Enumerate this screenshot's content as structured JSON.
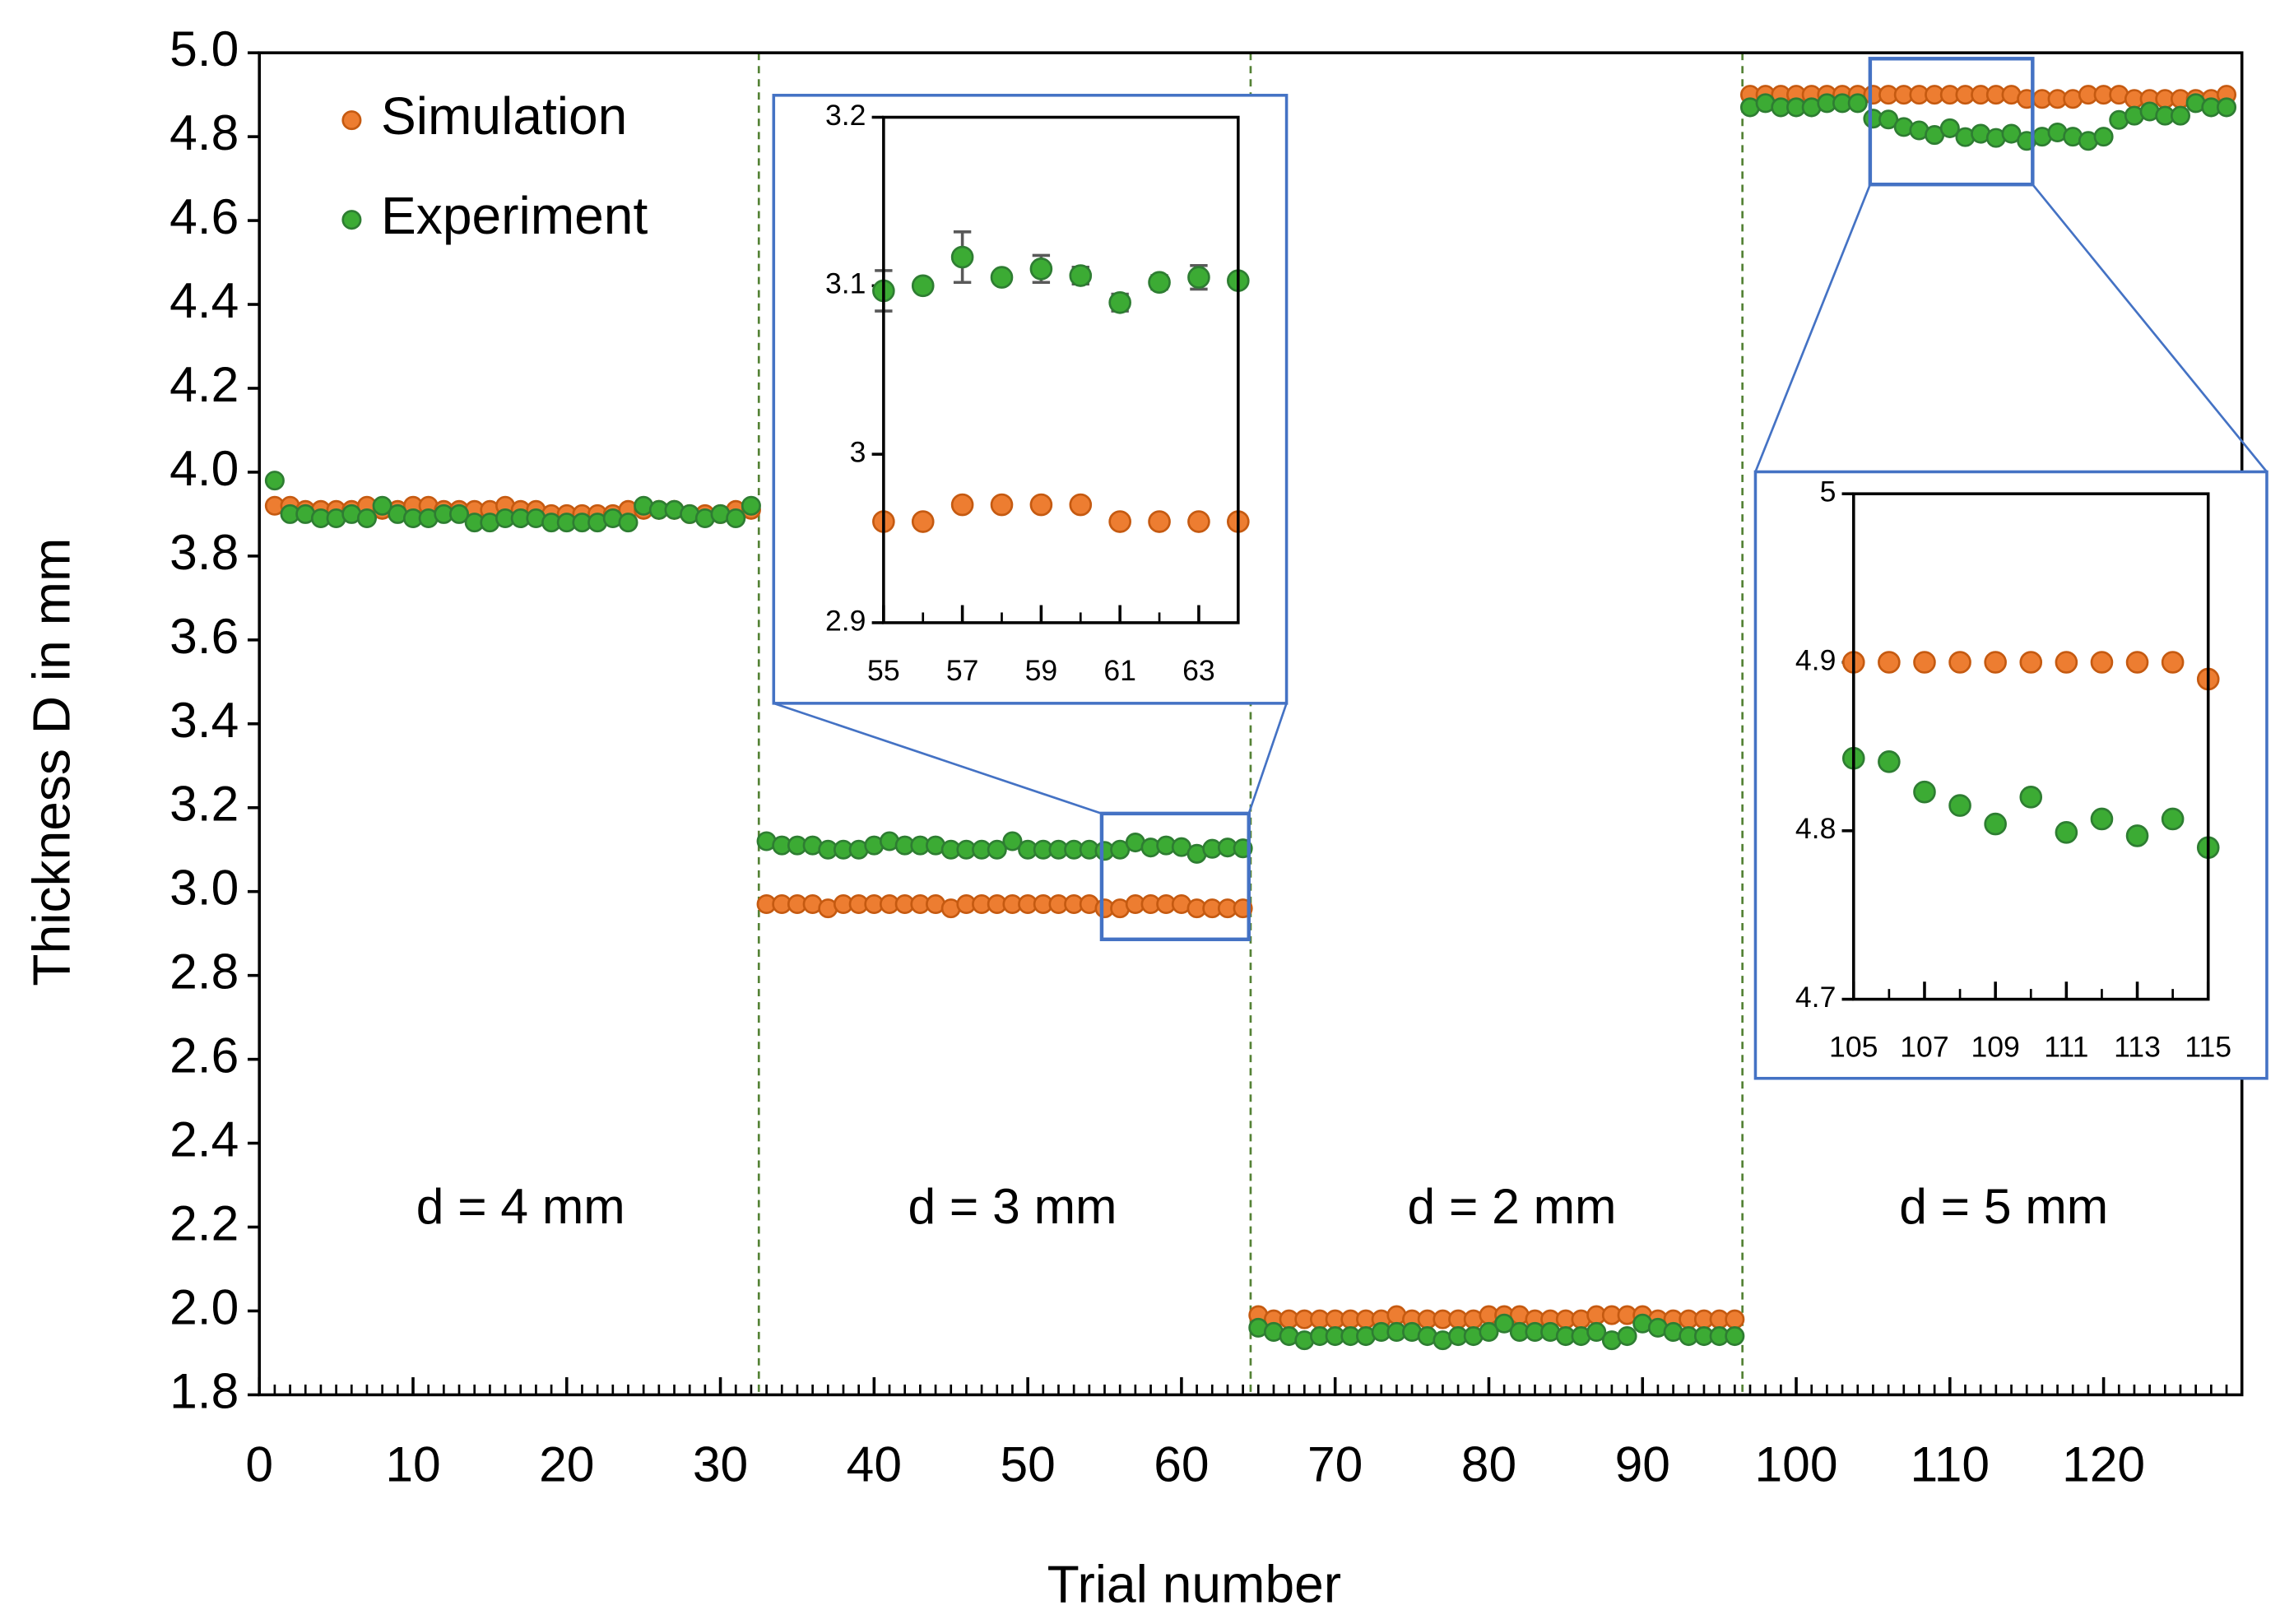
{
  "chart_data": [
    {
      "type": "scatter",
      "x_label": "Trial number",
      "y_label": "Thickness D in mm",
      "xlim": [
        0,
        129
      ],
      "xticks": [
        0,
        10,
        20,
        30,
        40,
        50,
        60,
        70,
        80,
        90,
        100,
        110,
        120
      ],
      "xminor": 1,
      "ylim": [
        1.8,
        5.0
      ],
      "yticks": [
        1.8,
        {
          "value": 2.0,
          "label": "2.0"
        },
        2.2,
        2.4,
        2.6,
        2.8,
        {
          "value": 3.0,
          "label": "3.0"
        },
        3.2,
        3.4,
        3.6,
        3.8,
        {
          "value": 4.0,
          "label": "4.0"
        },
        4.2,
        4.4,
        4.6,
        4.8,
        {
          "value": 5.0,
          "label": "5.0"
        }
      ],
      "legend": "top-left",
      "dividers": [
        32.5,
        64.5,
        96.5
      ],
      "annotations": [
        {
          "text": "d = 4 mm",
          "x": 17,
          "y": 2.24
        },
        {
          "text": "d = 3 mm",
          "x": 49,
          "y": 2.24
        },
        {
          "text": "d = 2 mm",
          "x": 81.5,
          "y": 2.24
        },
        {
          "text": "d = 5 mm",
          "x": 113.5,
          "y": 2.24
        }
      ],
      "x": [
        1,
        2,
        3,
        4,
        5,
        6,
        7,
        8,
        9,
        10,
        11,
        12,
        13,
        14,
        15,
        16,
        17,
        18,
        19,
        20,
        21,
        22,
        23,
        24,
        25,
        26,
        27,
        28,
        29,
        30,
        31,
        32,
        33,
        34,
        35,
        36,
        37,
        38,
        39,
        40,
        41,
        42,
        43,
        44,
        45,
        46,
        47,
        48,
        49,
        50,
        51,
        52,
        53,
        54,
        55,
        56,
        57,
        58,
        59,
        60,
        61,
        62,
        63,
        64,
        65,
        66,
        67,
        68,
        69,
        70,
        71,
        72,
        73,
        74,
        75,
        76,
        77,
        78,
        79,
        80,
        81,
        82,
        83,
        84,
        85,
        86,
        87,
        88,
        89,
        90,
        91,
        92,
        93,
        94,
        95,
        96,
        97,
        98,
        99,
        100,
        101,
        102,
        103,
        104,
        105,
        106,
        107,
        108,
        109,
        110,
        111,
        112,
        113,
        114,
        115,
        116,
        117,
        118,
        119,
        120,
        121,
        122,
        123,
        124,
        125,
        126,
        127,
        128
      ],
      "series": [
        {
          "name": "Simulation",
          "color": "#ed7d31",
          "stroke": "#c55a11",
          "values": [
            3.92,
            3.92,
            3.91,
            3.91,
            3.91,
            3.91,
            3.92,
            3.91,
            3.91,
            3.92,
            3.92,
            3.91,
            3.91,
            3.91,
            3.91,
            3.92,
            3.91,
            3.91,
            3.9,
            3.9,
            3.9,
            3.9,
            3.9,
            3.91,
            3.91,
            3.91,
            3.91,
            3.9,
            3.9,
            3.9,
            3.91,
            3.91,
            2.97,
            2.97,
            2.97,
            2.97,
            2.96,
            2.97,
            2.97,
            2.97,
            2.97,
            2.97,
            2.97,
            2.97,
            2.96,
            2.97,
            2.97,
            2.97,
            2.97,
            2.97,
            2.97,
            2.97,
            2.97,
            2.97,
            2.96,
            2.96,
            2.97,
            2.97,
            2.97,
            2.97,
            2.96,
            2.96,
            2.96,
            2.96,
            1.99,
            1.98,
            1.98,
            1.98,
            1.98,
            1.98,
            1.98,
            1.98,
            1.98,
            1.99,
            1.98,
            1.98,
            1.98,
            1.98,
            1.98,
            1.99,
            1.99,
            1.99,
            1.98,
            1.98,
            1.98,
            1.98,
            1.99,
            1.99,
            1.99,
            1.99,
            1.98,
            1.98,
            1.98,
            1.98,
            1.98,
            1.98,
            4.9,
            4.9,
            4.9,
            4.9,
            4.9,
            4.9,
            4.9,
            4.9,
            4.9,
            4.9,
            4.9,
            4.9,
            4.9,
            4.9,
            4.9,
            4.9,
            4.9,
            4.9,
            4.89,
            4.89,
            4.89,
            4.89,
            4.9,
            4.9,
            4.9,
            4.89,
            4.89,
            4.89,
            4.89,
            4.89,
            4.89,
            4.9
          ]
        },
        {
          "name": "Experiment",
          "color": "#3cab34",
          "stroke": "#2e7d32",
          "values": [
            3.98,
            3.9,
            3.9,
            3.89,
            3.89,
            3.9,
            3.89,
            3.92,
            3.9,
            3.89,
            3.89,
            3.9,
            3.9,
            3.88,
            3.88,
            3.89,
            3.89,
            3.89,
            3.88,
            3.88,
            3.88,
            3.88,
            3.89,
            3.88,
            3.92,
            3.91,
            3.91,
            3.9,
            3.89,
            3.9,
            3.89,
            3.92,
            3.12,
            3.11,
            3.11,
            3.11,
            3.1,
            3.1,
            3.1,
            3.11,
            3.12,
            3.11,
            3.11,
            3.11,
            3.1,
            3.1,
            3.1,
            3.1,
            3.12,
            3.1,
            3.1,
            3.1,
            3.1,
            3.1,
            3.097,
            3.1,
            3.117,
            3.105,
            3.11,
            3.106,
            3.09,
            3.102,
            3.105,
            3.103,
            1.96,
            1.95,
            1.94,
            1.93,
            1.94,
            1.94,
            1.94,
            1.94,
            1.95,
            1.95,
            1.95,
            1.94,
            1.93,
            1.94,
            1.94,
            1.95,
            1.97,
            1.95,
            1.95,
            1.95,
            1.94,
            1.94,
            1.95,
            1.93,
            1.94,
            1.97,
            1.96,
            1.95,
            1.94,
            1.94,
            1.94,
            1.94,
            4.87,
            4.88,
            4.87,
            4.87,
            4.87,
            4.88,
            4.88,
            4.88,
            4.843,
            4.841,
            4.823,
            4.815,
            4.804,
            4.82,
            4.799,
            4.807,
            4.797,
            4.807,
            4.79,
            4.8,
            4.81,
            4.8,
            4.79,
            4.8,
            4.84,
            4.85,
            4.86,
            4.85,
            4.85,
            4.88,
            4.87,
            4.87
          ]
        }
      ]
    },
    {
      "type": "scatter",
      "xlim": [
        55,
        64
      ],
      "xticks": [
        55,
        57,
        59,
        61,
        63
      ],
      "xminor": 1,
      "ylim": [
        2.9,
        3.2
      ],
      "yticks": [
        2.9,
        3,
        3.1,
        3.2
      ],
      "x": [
        55,
        56,
        57,
        58,
        59,
        60,
        61,
        62,
        63,
        64
      ],
      "series": [
        {
          "color": "#ed7d31",
          "stroke": "#c55a11",
          "values": [
            2.96,
            2.96,
            2.97,
            2.97,
            2.97,
            2.97,
            2.96,
            2.96,
            2.96,
            2.96
          ]
        },
        {
          "color": "#3cab34",
          "stroke": "#2e7d32",
          "values": [
            3.097,
            3.1,
            3.117,
            3.105,
            3.11,
            3.106,
            3.09,
            3.102,
            3.105,
            3.103
          ],
          "errors": [
            0.012,
            0.003,
            0.015,
            0.003,
            0.008,
            0.005,
            0.005,
            0.004,
            0.007,
            0.003
          ]
        }
      ]
    },
    {
      "type": "scatter",
      "xlim": [
        105,
        115
      ],
      "xticks": [
        105,
        107,
        109,
        111,
        113,
        115
      ],
      "xminor": 1,
      "ylim": [
        4.7,
        5
      ],
      "yticks": [
        4.7,
        4.8,
        4.9,
        5
      ],
      "x": [
        105,
        106,
        107,
        108,
        109,
        110,
        111,
        112,
        113,
        114,
        115
      ],
      "series": [
        {
          "color": "#ed7d31",
          "stroke": "#c55a11",
          "values": [
            4.9,
            4.9,
            4.9,
            4.9,
            4.9,
            4.9,
            4.9,
            4.9,
            4.9,
            4.9,
            4.89
          ]
        },
        {
          "color": "#3cab34",
          "stroke": "#2e7d32",
          "values": [
            4.843,
            4.841,
            4.823,
            4.815,
            4.804,
            4.82,
            4.799,
            4.807,
            4.797,
            4.807,
            4.79
          ]
        }
      ]
    }
  ]
}
